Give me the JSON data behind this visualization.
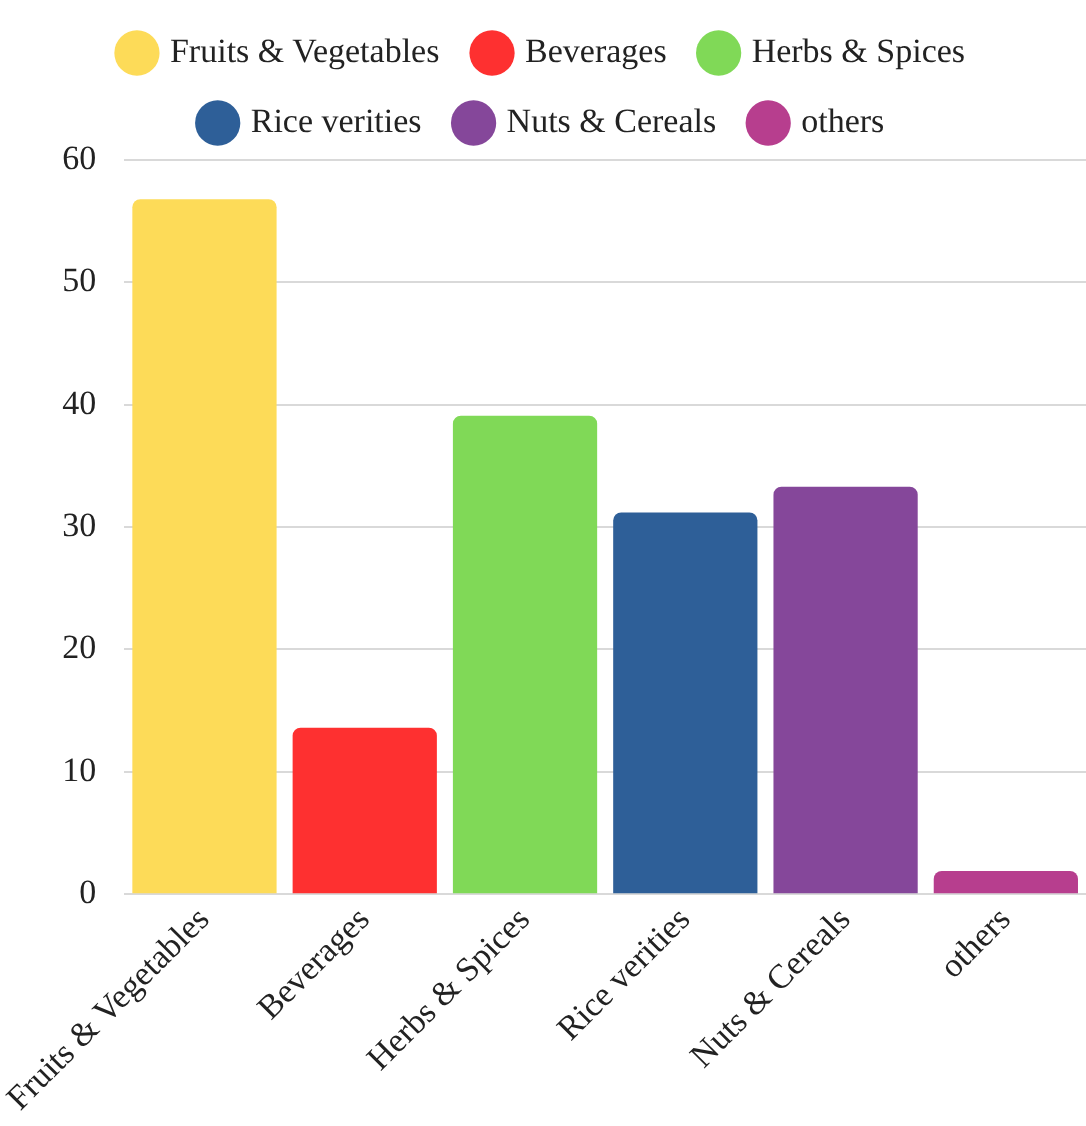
{
  "chart_data": {
    "type": "bar",
    "categories": [
      "Fruits & Vegetables",
      "Beverages",
      "Herbs & Spices",
      "Rice verities",
      "Nuts & Cereals",
      "others"
    ],
    "series": [
      {
        "name": "Fruits & Vegetables",
        "color": "#fddb58",
        "values": [
          56.8,
          null,
          null,
          null,
          null,
          null
        ]
      },
      {
        "name": "Beverages",
        "color": "#fe3030",
        "values": [
          null,
          13.6,
          null,
          null,
          null,
          null
        ]
      },
      {
        "name": "Herbs & Spices",
        "color": "#80d957",
        "values": [
          null,
          null,
          39.1,
          null,
          null,
          null
        ]
      },
      {
        "name": "Rice verities",
        "color": "#2e5f98",
        "values": [
          null,
          null,
          null,
          31.2,
          null,
          null
        ]
      },
      {
        "name": "Nuts & Cereals",
        "color": "#85479a",
        "values": [
          null,
          null,
          null,
          null,
          33.3,
          null
        ]
      },
      {
        "name": "others",
        "color": "#b73e8e",
        "values": [
          null,
          null,
          null,
          null,
          null,
          1.9
        ]
      }
    ],
    "ylim": [
      0,
      60
    ],
    "yticks": [
      0,
      10,
      20,
      30,
      40,
      50,
      60
    ],
    "grid": "y",
    "legend": "top"
  }
}
